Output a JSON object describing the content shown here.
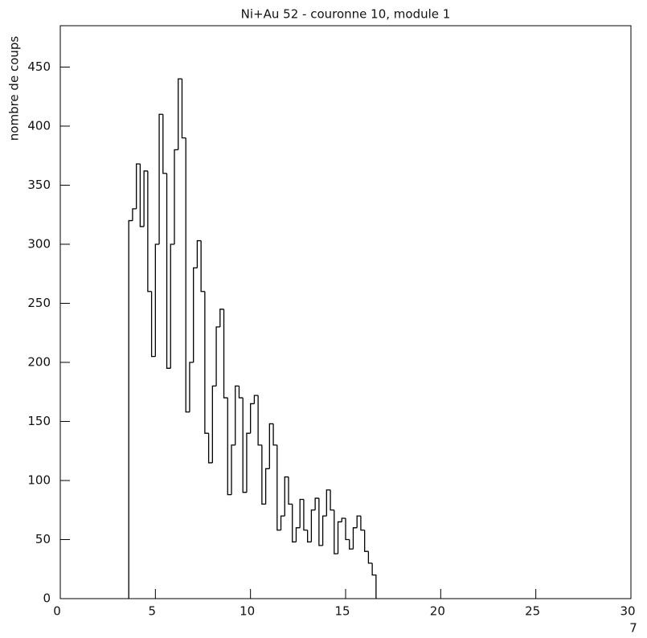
{
  "chart_data": {
    "type": "histogram",
    "title": "Ni+Au 52 - couronne 10, module 1",
    "y_label": "nombre de coups",
    "annotation": "7",
    "color": "#000000",
    "bins": [
      3.6,
      3.8,
      4.0,
      4.2,
      4.4,
      4.6,
      4.8,
      5.0,
      5.2,
      5.4,
      5.6,
      5.8,
      6.0,
      6.2,
      6.4,
      6.6,
      6.8,
      7.0,
      7.2,
      7.4,
      7.6,
      7.8,
      8.0,
      8.2,
      8.4,
      8.6,
      8.8,
      9.0,
      9.2,
      9.4,
      9.6,
      9.8,
      10.0,
      10.2,
      10.4,
      10.6,
      10.8,
      11.0,
      11.2,
      11.4,
      11.6,
      11.8,
      12.0,
      12.2,
      12.4,
      12.6,
      12.8,
      13.0,
      13.2,
      13.4,
      13.6,
      13.8,
      14.0,
      14.2,
      14.4,
      14.6,
      14.8,
      15.0,
      15.2,
      15.4,
      15.6,
      15.8,
      16.0,
      16.2,
      16.4,
      16.6
    ],
    "values": [
      320,
      330,
      368,
      315,
      362,
      260,
      205,
      300,
      410,
      360,
      195,
      300,
      380,
      440,
      390,
      158,
      200,
      280,
      303,
      260,
      140,
      115,
      180,
      230,
      245,
      170,
      88,
      130,
      180,
      170,
      90,
      140,
      165,
      172,
      130,
      80,
      110,
      148,
      130,
      58,
      70,
      103,
      80,
      48,
      60,
      84,
      58,
      48,
      75,
      85,
      45,
      70,
      92,
      75,
      38,
      65,
      68,
      50,
      42,
      60,
      70,
      58,
      40,
      30,
      20
    ],
    "xlim": [
      0,
      30
    ],
    "xticks": [
      0,
      5,
      10,
      15,
      20,
      25,
      30
    ],
    "ylim": [
      0,
      485
    ],
    "yticks": [
      0,
      50,
      100,
      150,
      200,
      250,
      300,
      350,
      400,
      450
    ]
  }
}
